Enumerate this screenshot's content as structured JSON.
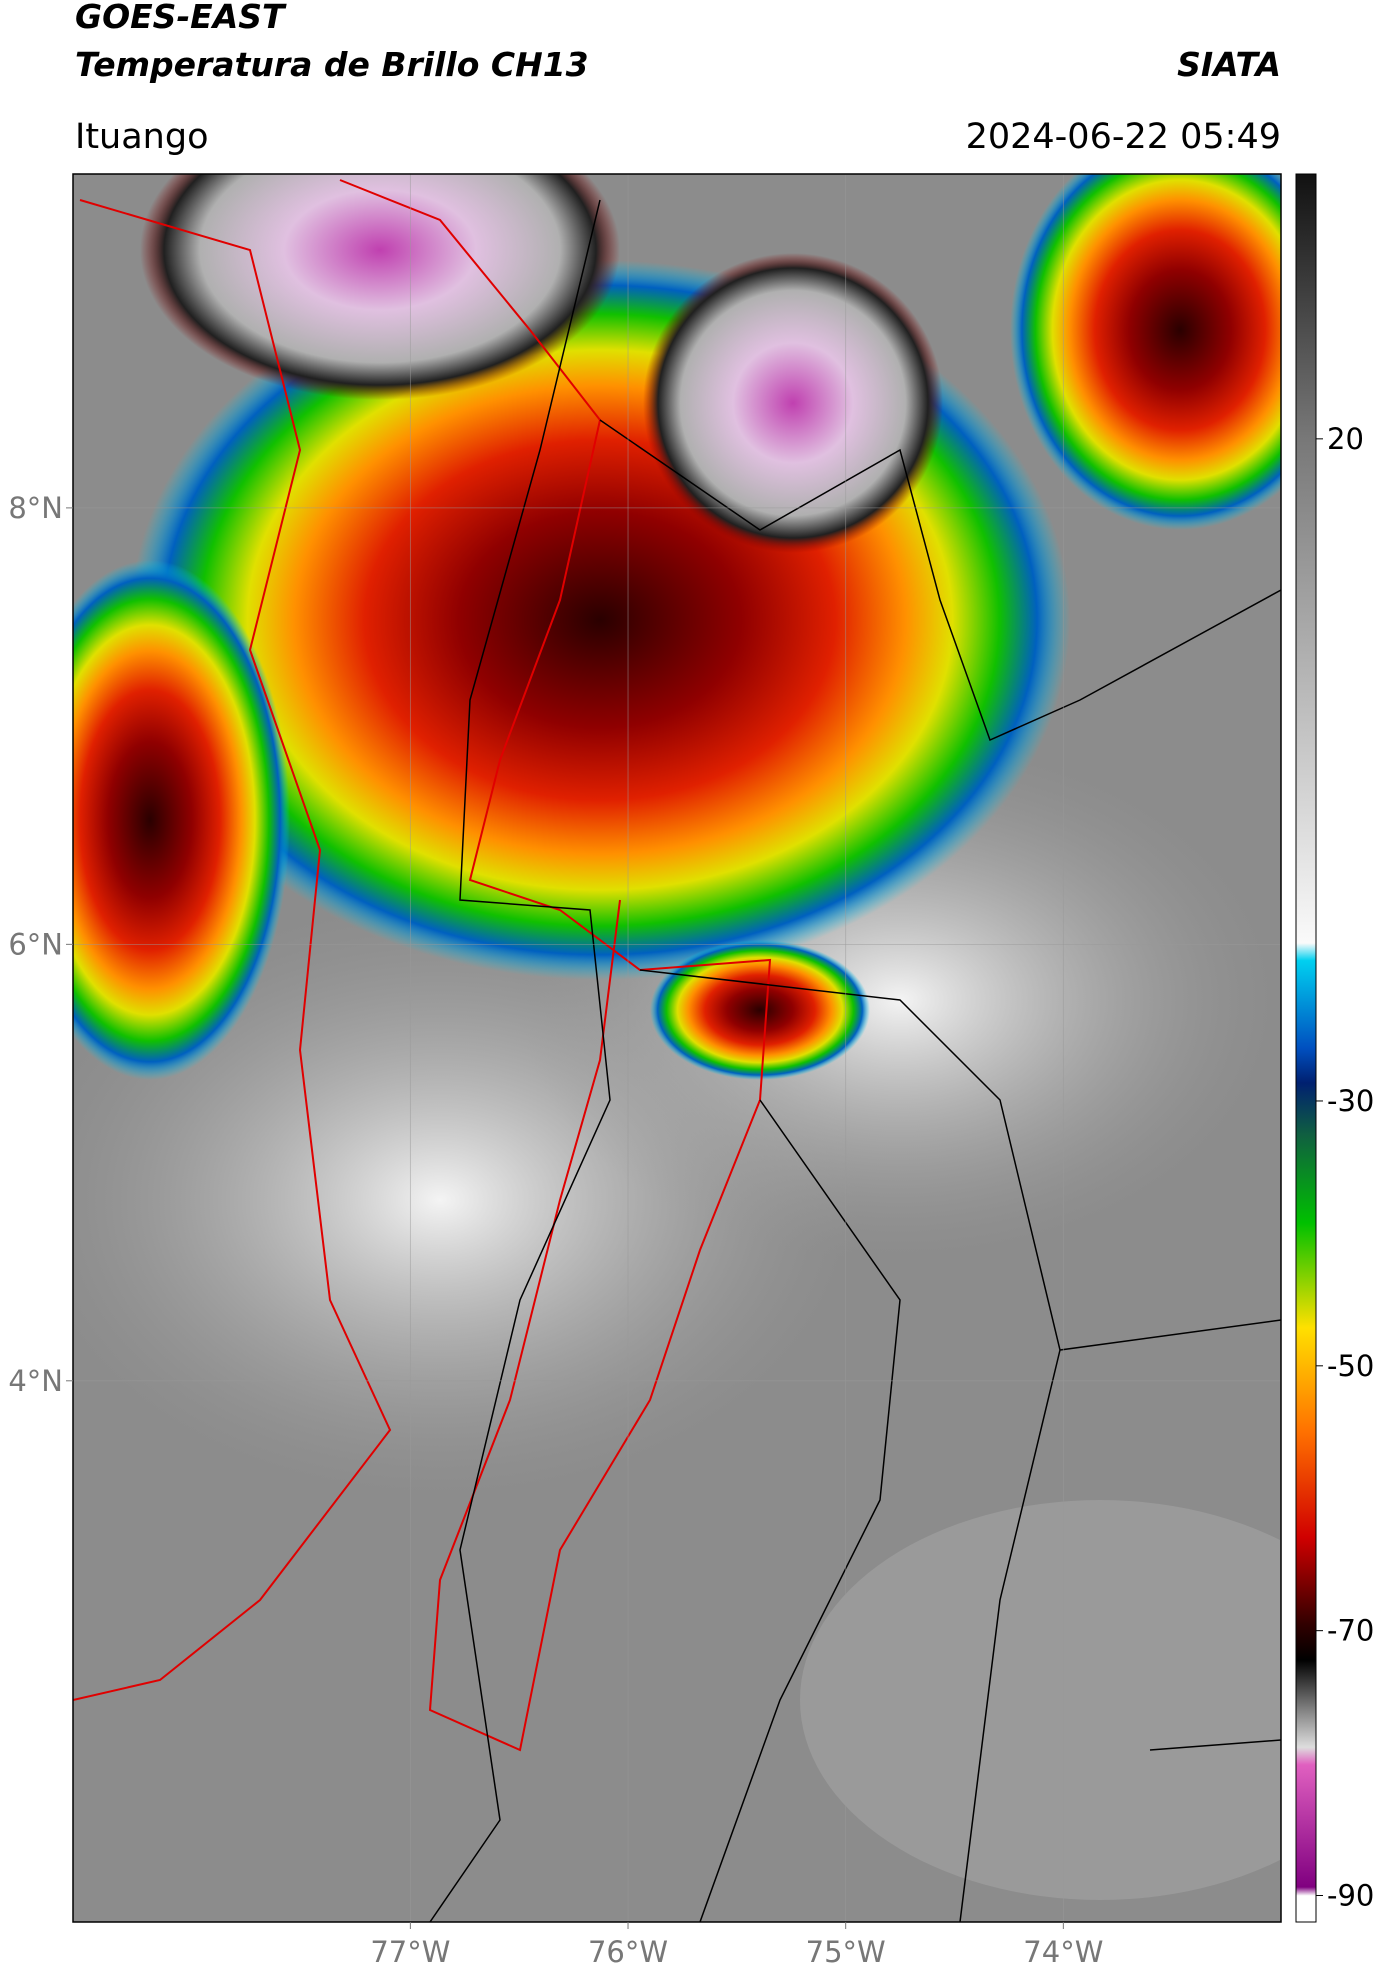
{
  "header": {
    "title": "GOES-EAST",
    "subtitle": "Temperatura de Brillo CH13",
    "brand": "SIATA",
    "location": "Ituango",
    "datetime": "2024-06-22 05:49"
  },
  "map": {
    "xlim": [
      -78.55,
      -73.0
    ],
    "ylim": [
      1.52,
      9.53
    ],
    "xticks": [
      {
        "value": -77,
        "label": "77°W"
      },
      {
        "value": -76,
        "label": "76°W"
      },
      {
        "value": -75,
        "label": "75°W"
      },
      {
        "value": -74,
        "label": "74°W"
      }
    ],
    "yticks": [
      {
        "value": 8,
        "label": "8°N"
      },
      {
        "value": 6,
        "label": "6°N"
      },
      {
        "value": 4,
        "label": "4°N"
      }
    ],
    "grid": true
  },
  "colorbar": {
    "lim": [
      -92,
      40
    ],
    "ticks": [
      20,
      -30,
      -50,
      -70,
      -90
    ]
  }
}
